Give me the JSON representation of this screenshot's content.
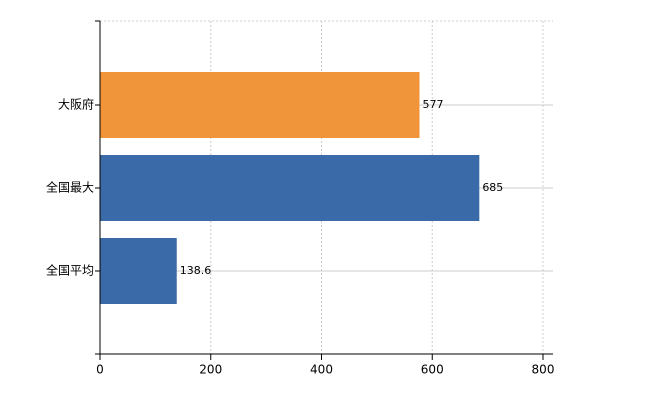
{
  "chart_data": {
    "type": "bar",
    "orientation": "horizontal",
    "categories": [
      "大阪府",
      "全国最大",
      "全国平均"
    ],
    "values": [
      577,
      685,
      138.6
    ],
    "colors": [
      "#f0953a",
      "#3b6aa8",
      "#3b6aa8"
    ],
    "xlim": [
      0,
      800
    ],
    "xticks": [
      0,
      200,
      400,
      600,
      800
    ],
    "grid": true
  }
}
